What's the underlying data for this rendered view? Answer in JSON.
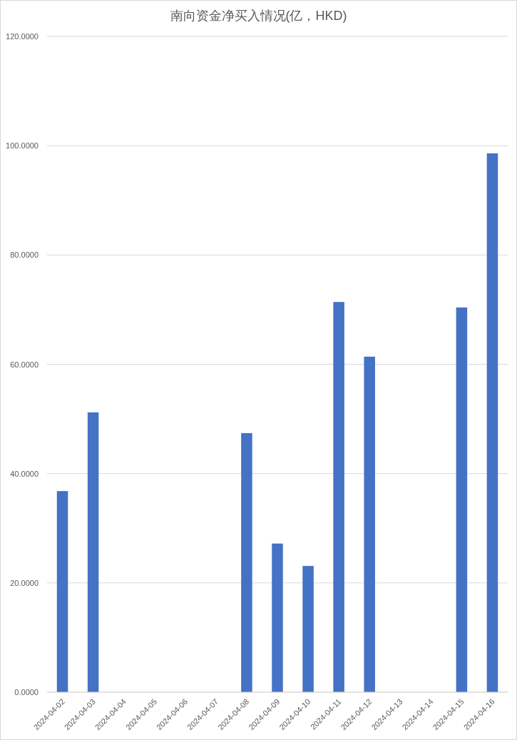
{
  "chart_data": {
    "type": "bar",
    "title": "南向资金净买入情况(亿，HKD)",
    "categories": [
      "2024-04-02",
      "2024-04-03",
      "2024-04-04",
      "2024-04-05",
      "2024-04-06",
      "2024-04-07",
      "2024-04-08",
      "2024-04-09",
      "2024-04-10",
      "2024-04-11",
      "2024-04-12",
      "2024-04-13",
      "2024-04-14",
      "2024-04-15",
      "2024-04-16"
    ],
    "values": [
      36.8,
      51.2,
      null,
      null,
      null,
      null,
      47.4,
      27.2,
      23.1,
      71.4,
      61.4,
      null,
      null,
      70.4,
      98.6
    ],
    "color": "#4472c4",
    "ylim": [
      0,
      120
    ],
    "yticks": [
      {
        "value": 0,
        "label": "0.0000"
      },
      {
        "value": 20,
        "label": "20.0000"
      },
      {
        "value": 40,
        "label": "40.0000"
      },
      {
        "value": 60,
        "label": "60.0000"
      },
      {
        "value": 80,
        "label": "80.0000"
      },
      {
        "value": 100,
        "label": "100.0000"
      },
      {
        "value": 120,
        "label": "120.0000"
      }
    ],
    "grid": "y"
  }
}
